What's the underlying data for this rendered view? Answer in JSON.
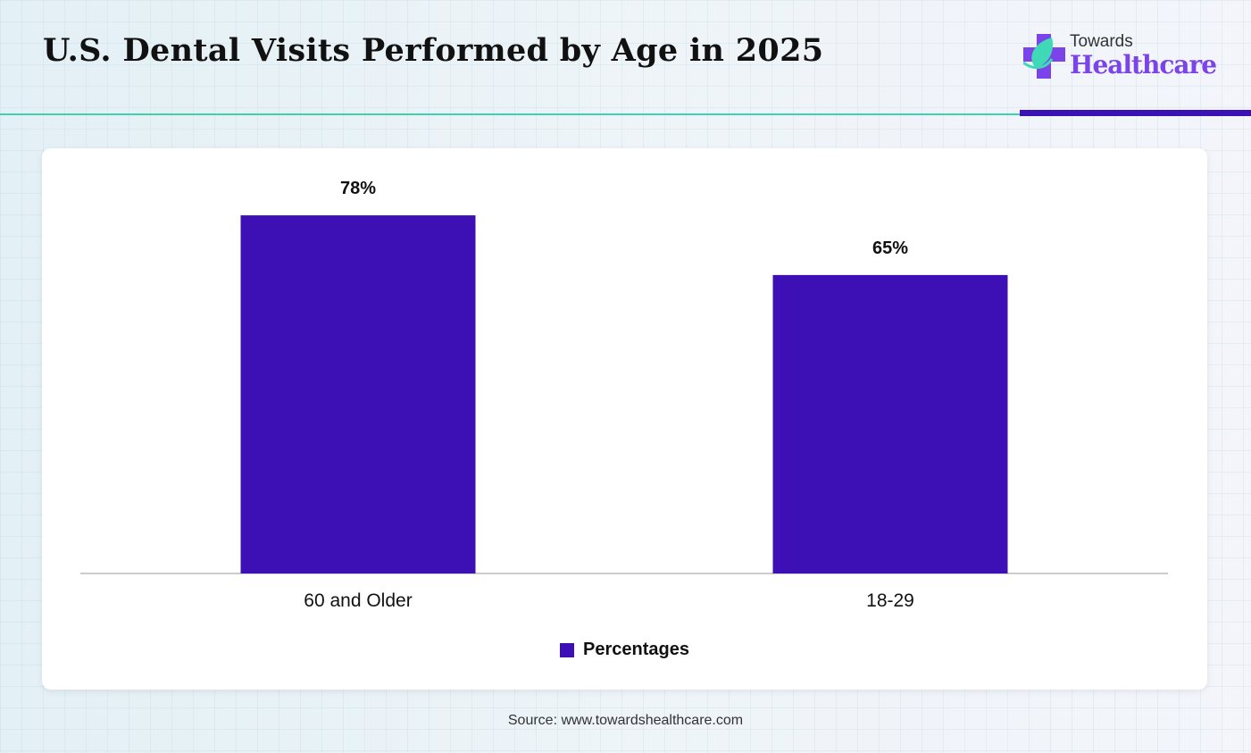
{
  "header": {
    "title": "U.S. Dental Visits Performed by Age in 2025"
  },
  "logo": {
    "line1": "Towards",
    "line2": "Healthcare"
  },
  "colors": {
    "bar": "#3d10b5",
    "accent_teal": "#3fd1b0",
    "brand_purple": "#7a44ea"
  },
  "chart_data": {
    "type": "bar",
    "title": "U.S. Dental Visits Performed by Age in 2025",
    "categories": [
      "60 and Older",
      "18-29"
    ],
    "series": [
      {
        "name": "Percentages",
        "values": [
          78,
          65
        ]
      }
    ],
    "data_labels": [
      "78%",
      "65%"
    ],
    "xlabel": "",
    "ylabel": "",
    "ylim": [
      0,
      100
    ],
    "grid": false,
    "legend": "bottom-center"
  },
  "source": "Source: www.towardshealthcare.com"
}
